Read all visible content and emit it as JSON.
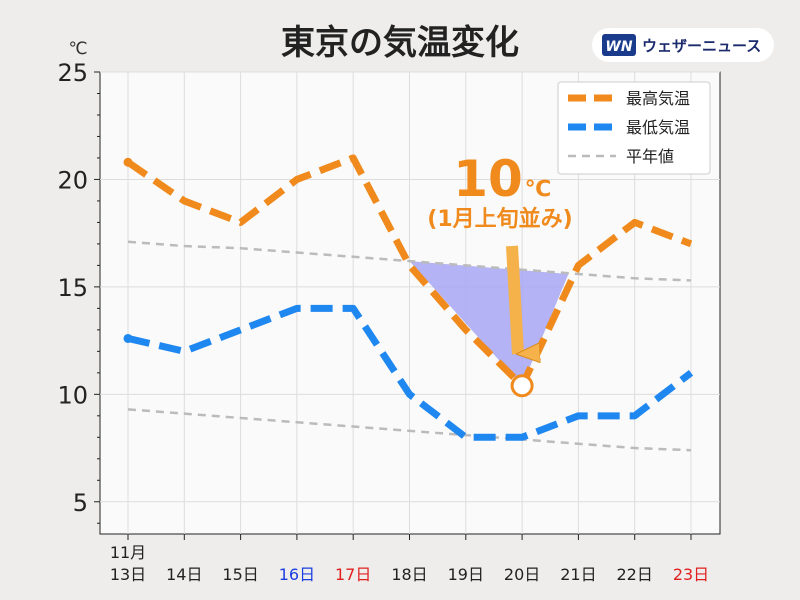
{
  "colors": {
    "high": "#f08a1c",
    "low": "#1e87f0",
    "normal": "#bbbbbb",
    "weekday": "#222222",
    "saturday": "#1a3fe0",
    "sunday": "#e02020",
    "highlight": "#a6a6f4"
  },
  "brand": {
    "logo_text": "WN",
    "name": "ウェザーニュース"
  },
  "annotation": {
    "value": "10",
    "unit": "℃",
    "note": "(1月上旬並み)"
  },
  "chart_data": {
    "type": "line",
    "title": "東京の気温変化",
    "ylabel": "℃",
    "ylim": [
      3.5,
      25
    ],
    "yticks": [
      "5",
      "10",
      "15",
      "20",
      "25"
    ],
    "grid": true,
    "legend_position": "top-right",
    "month_label": "11月",
    "categories": [
      {
        "label": "13日",
        "day_type": "weekday"
      },
      {
        "label": "14日",
        "day_type": "weekday"
      },
      {
        "label": "15日",
        "day_type": "weekday"
      },
      {
        "label": "16日",
        "day_type": "saturday"
      },
      {
        "label": "17日",
        "day_type": "sunday"
      },
      {
        "label": "18日",
        "day_type": "weekday"
      },
      {
        "label": "19日",
        "day_type": "weekday"
      },
      {
        "label": "20日",
        "day_type": "weekday"
      },
      {
        "label": "21日",
        "day_type": "weekday"
      },
      {
        "label": "22日",
        "day_type": "weekday"
      },
      {
        "label": "23日",
        "day_type": "sunday"
      }
    ],
    "series": [
      {
        "name": "最高気温",
        "style": "high",
        "values": [
          20.8,
          19,
          18,
          20,
          21,
          16,
          13,
          10.4,
          16,
          18,
          17
        ]
      },
      {
        "name": "最低気温",
        "style": "low",
        "values": [
          12.6,
          12,
          13,
          14,
          14,
          10,
          8,
          8,
          9,
          9,
          11
        ]
      },
      {
        "name": "平年値",
        "style": "normal",
        "values": [
          17.1,
          16.9,
          16.8,
          16.6,
          16.4,
          16.2,
          16,
          15.8,
          15.6,
          15.4,
          15.3
        ]
      },
      {
        "name": "",
        "style": "normal",
        "values": [
          9.3,
          9.1,
          8.9,
          8.7,
          8.5,
          8.3,
          8.1,
          7.9,
          7.7,
          7.5,
          7.4
        ]
      }
    ]
  }
}
